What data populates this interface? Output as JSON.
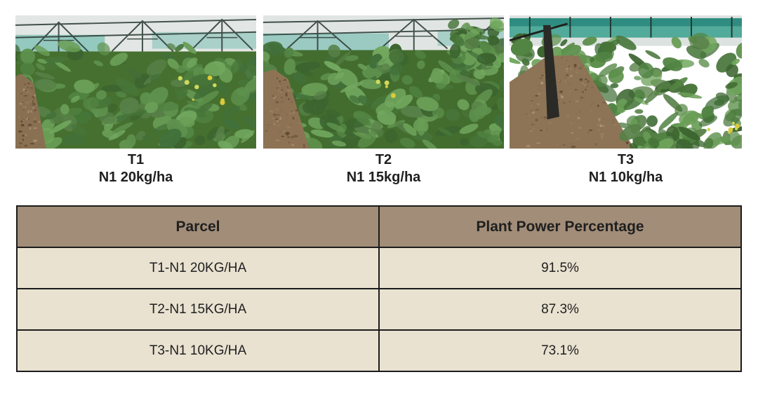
{
  "figure": {
    "photos": [
      {
        "title": "T1",
        "subtitle": "N1 20kg/ha"
      },
      {
        "title": "T2",
        "subtitle": "N1 15kg/ha"
      },
      {
        "title": "T3",
        "subtitle": "N1 10kg/ha"
      }
    ]
  },
  "table": {
    "headers": [
      "Parcel",
      "Plant Power Percentage"
    ],
    "rows": [
      {
        "parcel": "T1-N1 20KG/HA",
        "percentage": "91.5%"
      },
      {
        "parcel": "T2-N1 15KG/HA",
        "percentage": "87.3%"
      },
      {
        "parcel": "T3-N1 10KG/HA",
        "percentage": "73.1%"
      }
    ]
  },
  "chart_data": {
    "type": "table",
    "columns": [
      "Parcel",
      "Plant Power Percentage"
    ],
    "rows": [
      [
        "T1-N1 20KG/HA",
        "91.5%"
      ],
      [
        "T2-N1 15KG/HA",
        "87.3%"
      ],
      [
        "T3-N1 10KG/HA",
        "73.1%"
      ]
    ]
  },
  "colors": {
    "header_bg": "#a28d78",
    "row_bg": "#e9e2d1",
    "table_border": "#1b1b1b",
    "text": "#1f1f1f"
  }
}
